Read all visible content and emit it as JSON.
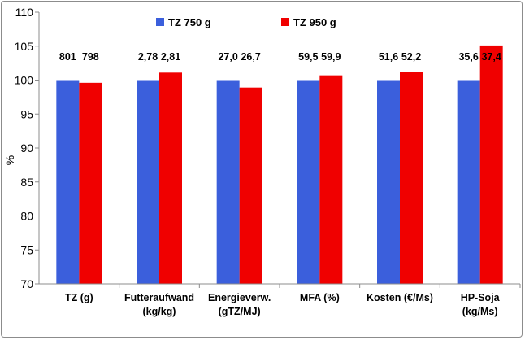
{
  "chart_data": {
    "type": "bar",
    "title": "",
    "ylabel": "%",
    "xlabel": "",
    "ylim": [
      70,
      110
    ],
    "yticks": [
      "70",
      "75",
      "80",
      "85",
      "90",
      "95",
      "100",
      "105",
      "110"
    ],
    "grid": false,
    "legend_position": "top",
    "categories": [
      [
        "TZ (g)"
      ],
      [
        "Futteraufwand",
        "(kg/kg)"
      ],
      [
        "Energieverw.",
        "(gTZ/MJ)"
      ],
      [
        "MFA (%)"
      ],
      [
        "Kosten (€/Ms)"
      ],
      [
        "HP-Soja",
        "(kg/Ms)"
      ]
    ],
    "series": [
      {
        "name": "TZ 750 g",
        "color": "#3b5fdc",
        "values": [
          100,
          100,
          100,
          100,
          100,
          100
        ],
        "labels": [
          "801",
          "2,78",
          "27,0",
          "59,5",
          "51,6",
          "35,6"
        ]
      },
      {
        "name": "TZ 950 g",
        "color": "#f00000",
        "values": [
          99.6,
          101.1,
          98.9,
          100.7,
          101.2,
          105.1
        ],
        "labels": [
          "798",
          "2,81",
          "26,7",
          "59,9",
          "52,2",
          "37,4"
        ]
      }
    ]
  }
}
